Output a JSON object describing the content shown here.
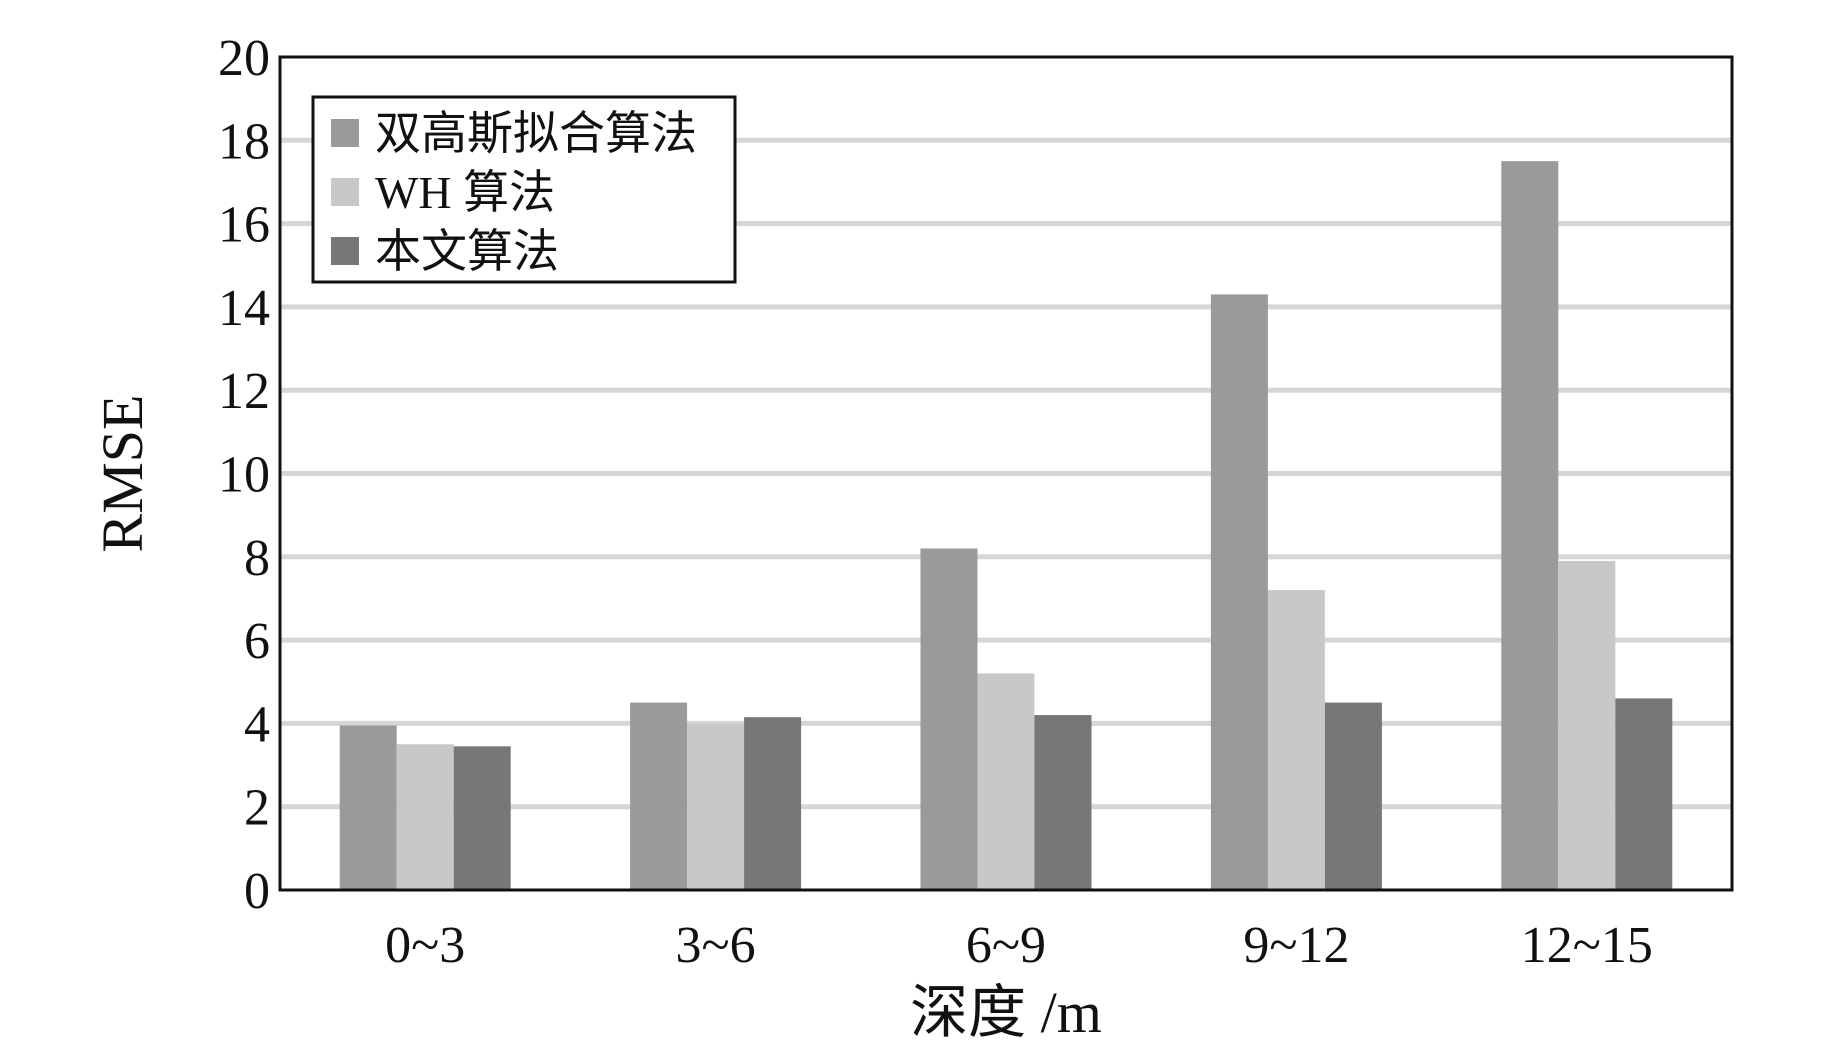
{
  "chart_data": {
    "type": "bar",
    "title": "",
    "xlabel": "深度 /m",
    "ylabel": "RMSE",
    "ylim": [
      0,
      20
    ],
    "yticks": [
      0,
      2,
      4,
      6,
      8,
      10,
      12,
      14,
      16,
      18,
      20
    ],
    "grid": true,
    "legend_position": "top-left",
    "categories": [
      "0~3",
      "3~6",
      "6~9",
      "9~12",
      "12~15"
    ],
    "series": [
      {
        "name": "双高斯拟合算法",
        "color": "#9a9a9a",
        "values": [
          3.95,
          4.5,
          8.2,
          14.3,
          17.5
        ]
      },
      {
        "name": "WH 算法",
        "color": "#c8c8c8",
        "values": [
          3.5,
          4.0,
          5.2,
          7.2,
          7.9
        ]
      },
      {
        "name": "本文算法",
        "color": "#777777",
        "values": [
          3.45,
          4.15,
          4.2,
          4.5,
          4.6
        ]
      }
    ]
  }
}
